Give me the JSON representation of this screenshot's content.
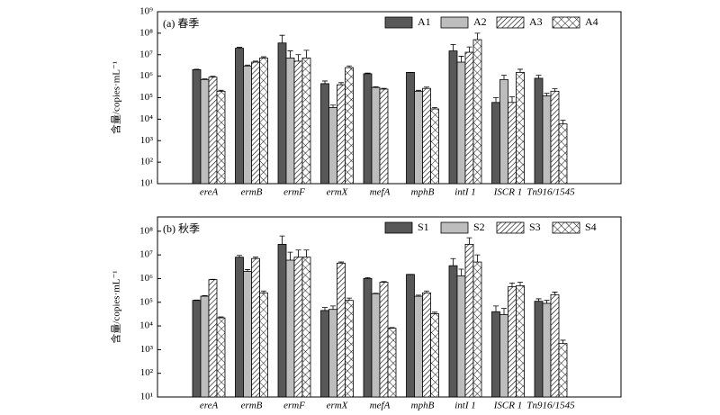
{
  "chart_data": [
    {
      "type": "bar",
      "title": "(a) 春季",
      "ylabel": "含量/copies·mL⁻¹",
      "log_scale": true,
      "legend": "upper right",
      "categories": [
        "ereA",
        "ermB",
        "ermF",
        "ermX",
        "mefA",
        "mphB",
        "intI 1",
        "ISCR 1",
        "Tn916/1545"
      ],
      "ylim": [
        10,
        1000000000
      ],
      "yticks": [
        {
          "value": 10,
          "label": "10¹"
        },
        {
          "value": 100,
          "label": "10²"
        },
        {
          "value": 1000,
          "label": "10³"
        },
        {
          "value": 10000,
          "label": "10⁴"
        },
        {
          "value": 100000,
          "label": "10⁵"
        },
        {
          "value": 1000000,
          "label": "10⁶"
        },
        {
          "value": 10000000,
          "label": "10⁷"
        },
        {
          "value": 100000000,
          "label": "10⁸"
        },
        {
          "value": 1000000000,
          "label": "10⁹"
        }
      ],
      "series": [
        {
          "name": "A1",
          "color": "#585858",
          "pattern": "solid",
          "values": [
            2000000,
            20000000,
            35000000,
            450000,
            1300000,
            1500000,
            15000000,
            60000,
            800000
          ],
          "errors": [
            100000,
            2000000,
            45000000,
            150000,
            100000,
            0,
            15000000,
            40000,
            300000
          ]
        },
        {
          "name": "A2",
          "color": "#bdbdbd",
          "pattern": "solid",
          "values": [
            700000,
            3000000,
            7000000,
            35000,
            300000,
            200000,
            4500000,
            700000,
            120000
          ],
          "errors": [
            50000,
            300000,
            8000000,
            10000,
            20000,
            20000,
            4000000,
            400000,
            40000
          ]
        },
        {
          "name": "A3",
          "color": "#000000",
          "pattern": "hatch",
          "values": [
            900000,
            4500000,
            5000000,
            400000,
            250000,
            270000,
            13000000,
            60000,
            200000
          ],
          "errors": [
            80000,
            500000,
            5000000,
            100000,
            20000,
            40000,
            10000000,
            50000,
            60000
          ]
        },
        {
          "name": "A4",
          "color": "#000000",
          "pattern": "crosshatch",
          "values": [
            200000,
            7000000,
            7000000,
            2500000,
            null,
            30000,
            50000000,
            1500000,
            6000
          ],
          "errors": [
            20000,
            1000000,
            9000000,
            500000,
            null,
            5000,
            50000000,
            600000,
            3000
          ]
        }
      ]
    },
    {
      "type": "bar",
      "title": "(b) 秋季",
      "ylabel": "含量/copies·mL⁻¹",
      "log_scale": true,
      "legend": "upper right",
      "categories": [
        "ereA",
        "ermB",
        "ermF",
        "ermX",
        "mefA",
        "mphB",
        "intI 1",
        "ISCR 1",
        "Tn916/1545"
      ],
      "ylim": [
        10,
        400000000
      ],
      "yticks": [
        {
          "value": 10,
          "label": "10¹"
        },
        {
          "value": 100,
          "label": "10²"
        },
        {
          "value": 1000,
          "label": "10³"
        },
        {
          "value": 10000,
          "label": "10⁴"
        },
        {
          "value": 100000,
          "label": "10⁵"
        },
        {
          "value": 1000000,
          "label": "10⁶"
        },
        {
          "value": 10000000,
          "label": "10⁷"
        },
        {
          "value": 100000000,
          "label": "10⁸"
        }
      ],
      "series": [
        {
          "name": "S1",
          "color": "#585858",
          "pattern": "solid",
          "values": [
            120000,
            8000000,
            28000000,
            45000,
            1000000,
            1500000,
            3500000,
            40000,
            110000
          ],
          "errors": [
            5000,
            1500000,
            35000000,
            15000,
            100000,
            0,
            3500000,
            30000,
            30000
          ]
        },
        {
          "name": "S2",
          "color": "#bdbdbd",
          "pattern": "solid",
          "values": [
            180000,
            2000000,
            6000000,
            50000,
            230000,
            180000,
            1300000,
            30000,
            90000
          ],
          "errors": [
            10000,
            400000,
            7000000,
            20000,
            10000,
            20000,
            1200000,
            25000,
            30000
          ]
        },
        {
          "name": "S3",
          "color": "#000000",
          "pattern": "hatch",
          "values": [
            900000,
            7000000,
            8000000,
            4500000,
            700000,
            250000,
            28000000,
            450000,
            210000
          ],
          "errors": [
            30000,
            1000000,
            8000000,
            500000,
            50000,
            50000,
            25000000,
            200000,
            60000
          ]
        },
        {
          "name": "S4",
          "color": "#000000",
          "pattern": "crosshatch",
          "values": [
            22000,
            250000,
            8000000,
            120000,
            8000,
            33000,
            5000000,
            500000,
            1800
          ],
          "errors": [
            2000,
            50000,
            8000000,
            30000,
            500,
            5000,
            5000000,
            200000,
            700
          ]
        }
      ]
    }
  ]
}
